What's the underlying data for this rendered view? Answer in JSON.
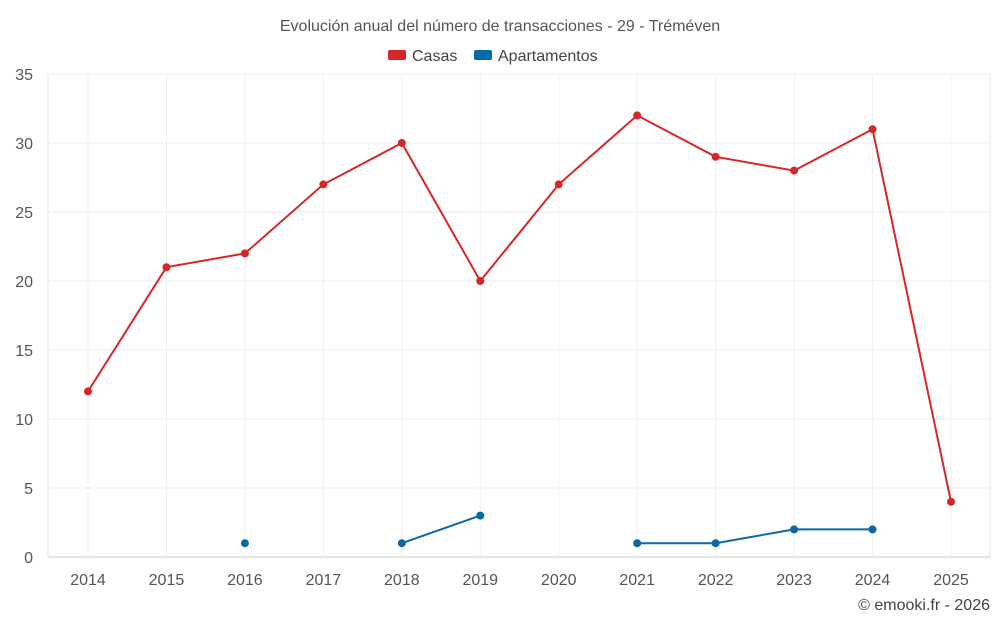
{
  "chart_data": {
    "type": "line",
    "title": "Evolución anual del número de transacciones - 29 - Tréméven",
    "xlabel": "",
    "ylabel": "",
    "categories": [
      "2014",
      "2015",
      "2016",
      "2017",
      "2018",
      "2019",
      "2020",
      "2021",
      "2022",
      "2023",
      "2024",
      "2025"
    ],
    "ylim": [
      0,
      35
    ],
    "yticks": [
      0,
      5,
      10,
      15,
      20,
      25,
      30,
      35
    ],
    "grid": true,
    "legend_position": "top-center",
    "series": [
      {
        "name": "Casas",
        "color": "#d62728",
        "values": [
          12,
          21,
          22,
          27,
          30,
          20,
          27,
          32,
          29,
          28,
          31,
          4
        ]
      },
      {
        "name": "Apartamentos",
        "color": "#0868a8",
        "values": [
          null,
          null,
          1,
          null,
          1,
          3,
          null,
          1,
          1,
          2,
          2,
          null
        ]
      }
    ],
    "credit": "© emooki.fr - 2026"
  }
}
